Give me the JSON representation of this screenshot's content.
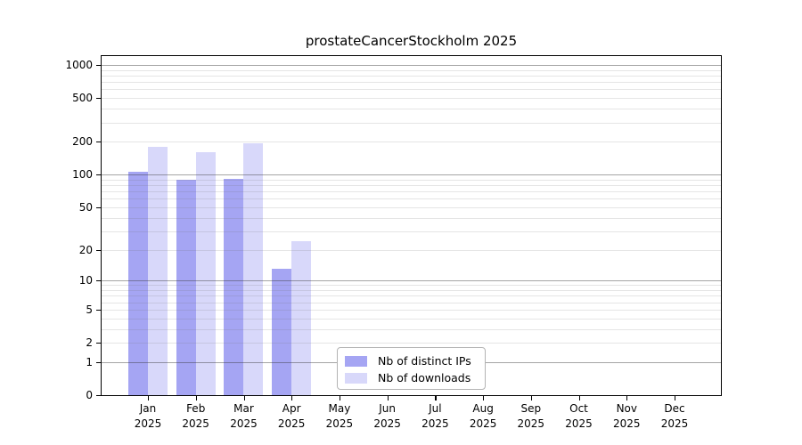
{
  "chart_data": {
    "type": "bar",
    "title": "prostateCancerStockholm 2025",
    "categories": [
      "Jan 2025",
      "Feb 2025",
      "Mar 2025",
      "Apr 2025",
      "May 2025",
      "Jun 2025",
      "Jul 2025",
      "Aug 2025",
      "Sep 2025",
      "Oct 2025",
      "Nov 2025",
      "Dec 2025"
    ],
    "series": [
      {
        "name": "Nb of distinct IPs",
        "color": "#a5a5f3",
        "values": [
          106,
          90,
          91,
          13,
          0,
          0,
          0,
          0,
          0,
          0,
          0,
          0
        ]
      },
      {
        "name": "Nb of downloads",
        "color": "#d8d8fa",
        "values": [
          179,
          161,
          193,
          24,
          0,
          0,
          0,
          0,
          0,
          0,
          0,
          0
        ]
      }
    ],
    "xlabel": "",
    "ylabel": "",
    "yscale": "log10(value+1)",
    "ylim": [
      0,
      1000
    ],
    "yticks": [
      0,
      1,
      2,
      5,
      10,
      20,
      50,
      100,
      200,
      500,
      1000
    ],
    "grid": "horizontal; minor lines at 2-9 per decade, major lines at 1, 10, 100, 1000",
    "legend_position": "inside bottom-center"
  },
  "colors": {
    "bar_distinct_ips": "#a5a5f3",
    "bar_downloads": "#d8d8fa",
    "grid_major": "#a5a5a5",
    "grid_minor": "#e5e5e5",
    "axis_frame": "#000000",
    "background": "#ffffff",
    "legend_border": "#b3b3b3",
    "text": "#000000"
  }
}
